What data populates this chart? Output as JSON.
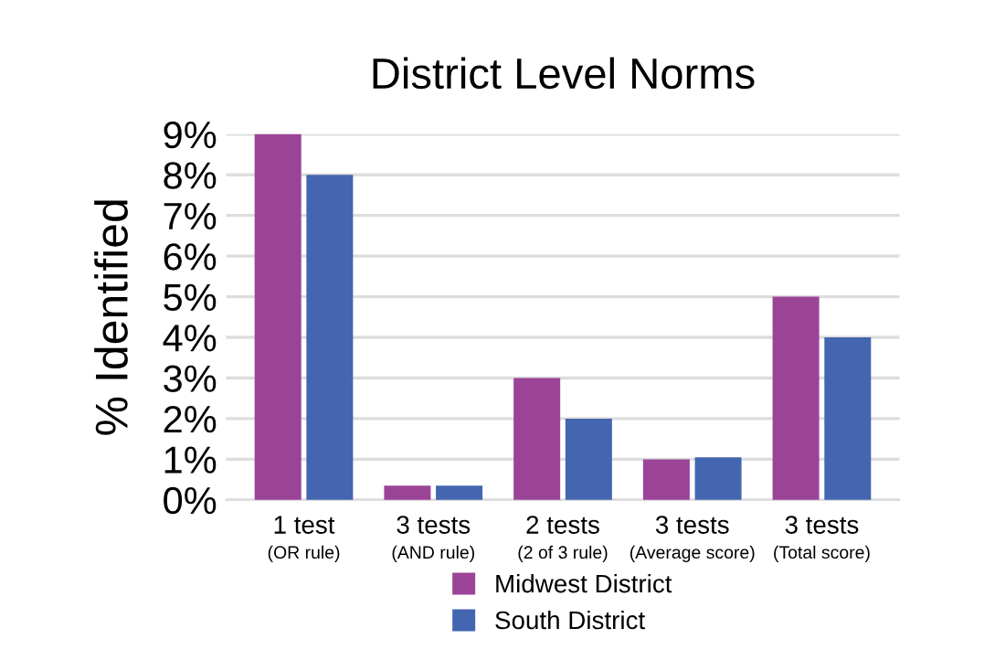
{
  "chart_data": {
    "type": "bar",
    "title": "District Level Norms",
    "ylabel": "% Identified",
    "categories": [
      "1 test\n(OR rule)",
      "3 tests\n(AND rule)",
      "2 tests\n(2 of 3 rule)",
      "3 tests\n(Average score)",
      "3 tests\n(Total score)"
    ],
    "series": [
      {
        "name": "Midwest District",
        "color": "#9b4497",
        "values": [
          9,
          0.35,
          3,
          1,
          5
        ]
      },
      {
        "name": "South District",
        "color": "#4466b0",
        "values": [
          8,
          0.35,
          2,
          1.05,
          4
        ]
      }
    ],
    "ylim": [
      0,
      9
    ],
    "yticks": [
      {
        "value": 0,
        "label": "0%"
      },
      {
        "value": 1,
        "label": "1%"
      },
      {
        "value": 2,
        "label": "2%"
      },
      {
        "value": 3,
        "label": "3%"
      },
      {
        "value": 4,
        "label": "4%"
      },
      {
        "value": 5,
        "label": "5%"
      },
      {
        "value": 6,
        "label": "6%"
      },
      {
        "value": 7,
        "label": "7%"
      },
      {
        "value": 8,
        "label": "8%"
      },
      {
        "value": 9,
        "label": "9%"
      }
    ],
    "grid": "y",
    "legend": "bottom"
  }
}
